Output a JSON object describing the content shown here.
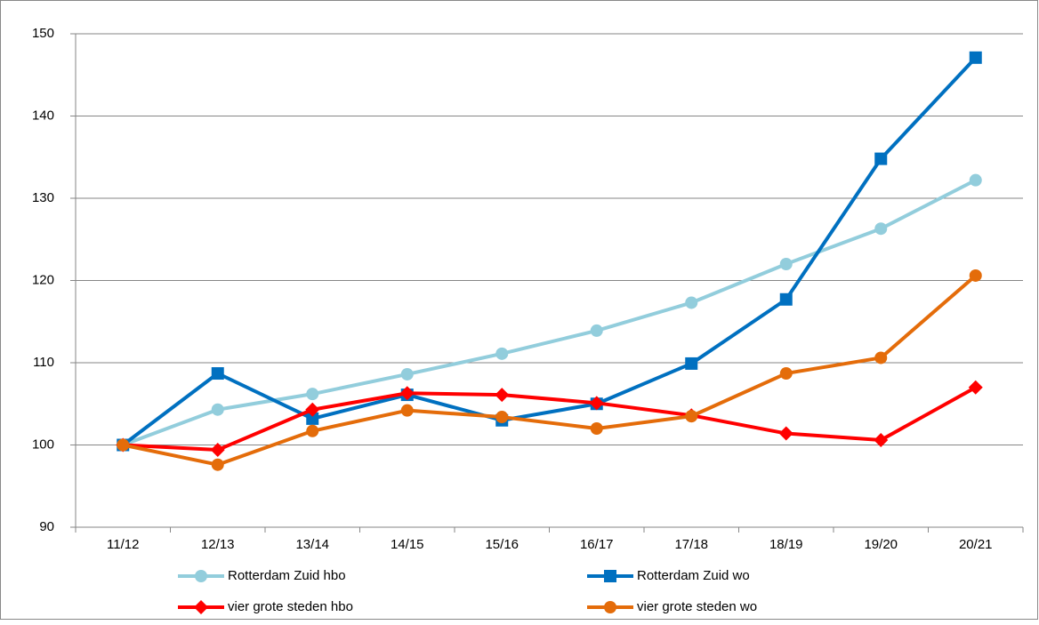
{
  "chart_data": {
    "type": "line",
    "categories": [
      "11/12",
      "12/13",
      "13/14",
      "14/15",
      "15/16",
      "16/17",
      "17/18",
      "18/19",
      "19/20",
      "20/21"
    ],
    "series": [
      {
        "name": "Rotterdam Zuid hbo",
        "color": "#92cddc",
        "marker": "circle",
        "values": [
          100,
          104.3,
          106.2,
          108.6,
          111.1,
          113.9,
          117.3,
          122,
          126.3,
          132.2
        ]
      },
      {
        "name": "Rotterdam Zuid wo",
        "color": "#0070c0",
        "marker": "square",
        "values": [
          100,
          108.7,
          103.2,
          106.1,
          103.0,
          105.0,
          109.9,
          117.7,
          134.8,
          147.1
        ]
      },
      {
        "name": "vier grote steden hbo",
        "color": "#ff0000",
        "marker": "diamond",
        "values": [
          100,
          99.4,
          104.3,
          106.3,
          106.1,
          105.1,
          103.6,
          101.4,
          100.6,
          107.0
        ]
      },
      {
        "name": "vier grote steden wo",
        "color": "#e46c0a",
        "marker": "circle",
        "values": [
          100,
          97.6,
          101.7,
          104.2,
          103.4,
          102.0,
          103.5,
          108.7,
          110.6,
          120.6
        ]
      }
    ],
    "ylim": [
      90,
      150
    ],
    "yticks": [
      90,
      100,
      110,
      120,
      130,
      140,
      150
    ],
    "grid": true,
    "legend": "bottom"
  }
}
